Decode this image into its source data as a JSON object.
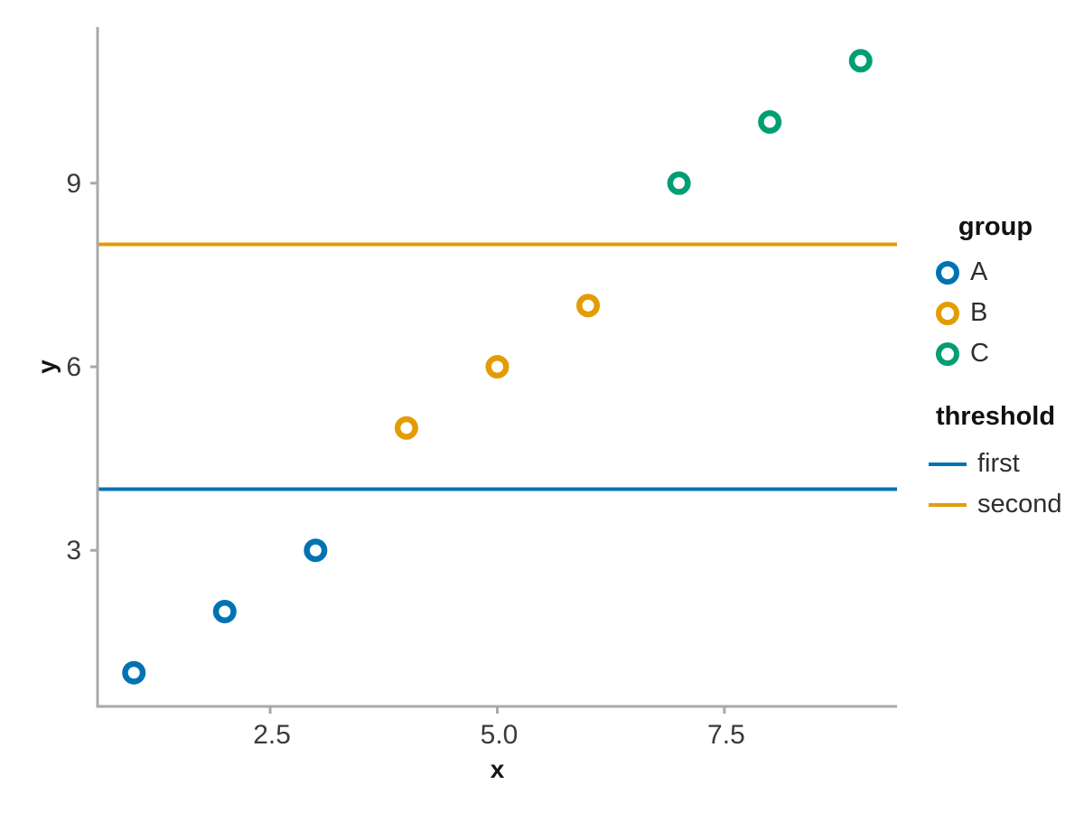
{
  "chart_data": {
    "type": "scatter",
    "title": "",
    "xlabel": "x",
    "ylabel": "y",
    "x_ticks": [
      2.5,
      5.0,
      7.5
    ],
    "x_tick_labels": [
      "2.5",
      "5.0",
      "7.5"
    ],
    "y_ticks": [
      3,
      6,
      9
    ],
    "y_tick_labels": [
      "3",
      "6",
      "9"
    ],
    "xlim": [
      0.6,
      9.4
    ],
    "ylim": [
      0.45,
      11.55
    ],
    "grid": false,
    "marker": "open-circle",
    "series": [
      {
        "name": "A",
        "color": "#0173B2",
        "points": [
          [
            1,
            1
          ],
          [
            2,
            2
          ],
          [
            3,
            3
          ]
        ]
      },
      {
        "name": "B",
        "color": "#E49C05",
        "points": [
          [
            4,
            5
          ],
          [
            5,
            6
          ],
          [
            6,
            7
          ]
        ]
      },
      {
        "name": "C",
        "color": "#029E73",
        "points": [
          [
            7,
            9
          ],
          [
            8,
            10
          ],
          [
            9,
            11
          ]
        ]
      }
    ],
    "thresholds": [
      {
        "name": "first",
        "color": "#0173B2",
        "y": 4
      },
      {
        "name": "second",
        "color": "#E49C05",
        "y": 8
      }
    ],
    "legend": {
      "position": "right",
      "group_title": "group",
      "threshold_title": "threshold"
    }
  },
  "style": {
    "axis_color": "#A9A9A9",
    "tick_label_color": "#3a3a3a",
    "label_color": "#141414",
    "background": "#FFFFFF"
  }
}
